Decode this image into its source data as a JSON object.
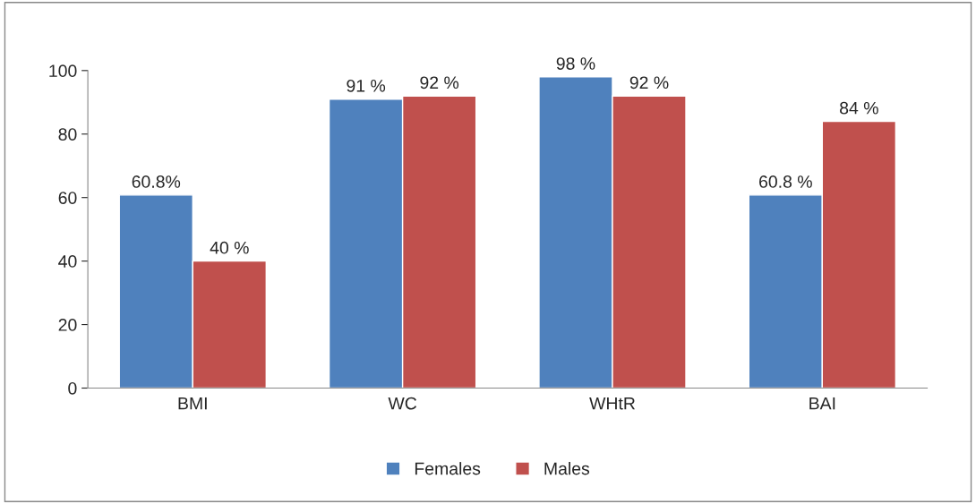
{
  "chart_data": {
    "type": "bar",
    "categories": [
      "BMI",
      "WC",
      "WHtR",
      "BAI"
    ],
    "series": [
      {
        "name": "Females",
        "color": "#4f81bd",
        "values": [
          60.8,
          91,
          98,
          60.8
        ],
        "value_labels": [
          "60.8%",
          "91 %",
          "98 %",
          "60.8 %"
        ]
      },
      {
        "name": "Males",
        "color": "#c0504d",
        "values": [
          40,
          92,
          92,
          84
        ],
        "value_labels": [
          "40 %",
          "92 %",
          "92 %",
          "84 %"
        ]
      }
    ],
    "ylim": [
      0,
      100
    ],
    "yticks": [
      0,
      20,
      40,
      60,
      80,
      100
    ],
    "grid": false,
    "legend": "bottom"
  }
}
